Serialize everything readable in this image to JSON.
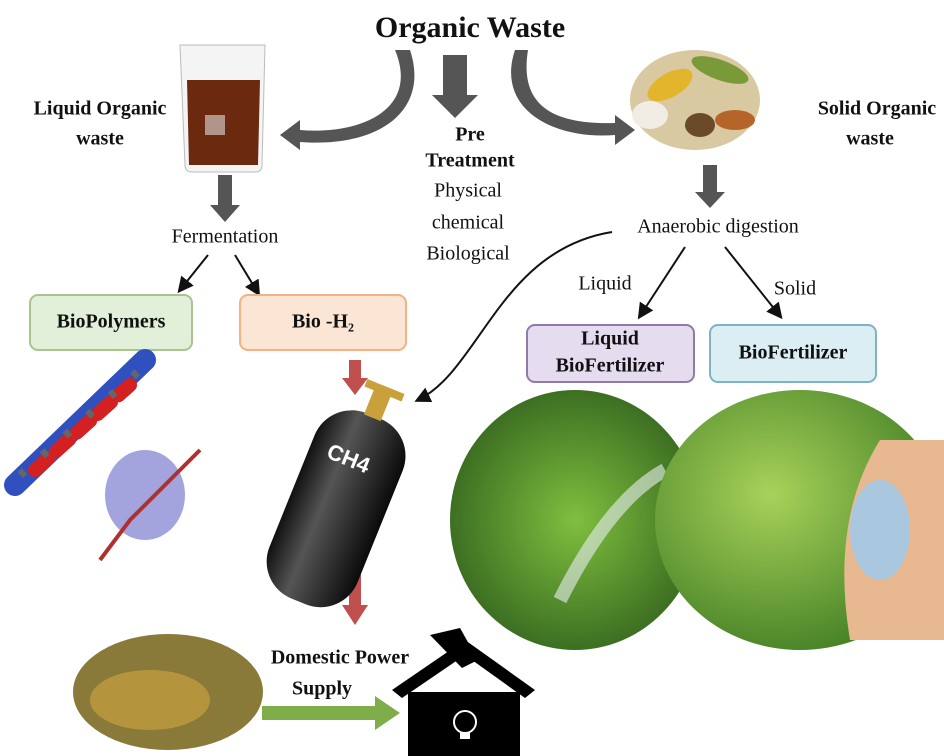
{
  "title": "Organic Waste",
  "liquid_source": {
    "lines": [
      "Liquid Organic",
      "waste"
    ]
  },
  "solid_source": {
    "lines": [
      "Solid  Organic",
      "waste"
    ]
  },
  "pretreatment": {
    "heading": [
      "Pre",
      "Treatment"
    ],
    "methods": [
      "Physical",
      "chemical",
      "Biological"
    ]
  },
  "fermentation": "Fermentation",
  "anaerobic": "Anaerobic digestion",
  "branch_labels": {
    "liquid": "Liquid",
    "solid": "Solid"
  },
  "products": {
    "biopolymers": "BioPolymers",
    "bio_h2": "Bio -H₂",
    "liquid_biofertilizer": [
      "Liquid",
      "BioFertilizer"
    ],
    "biofertilizer": "BioFertilizer"
  },
  "cylinder_label": "CH4",
  "power": {
    "lines": [
      "Domestic Power",
      "Supply"
    ]
  }
}
